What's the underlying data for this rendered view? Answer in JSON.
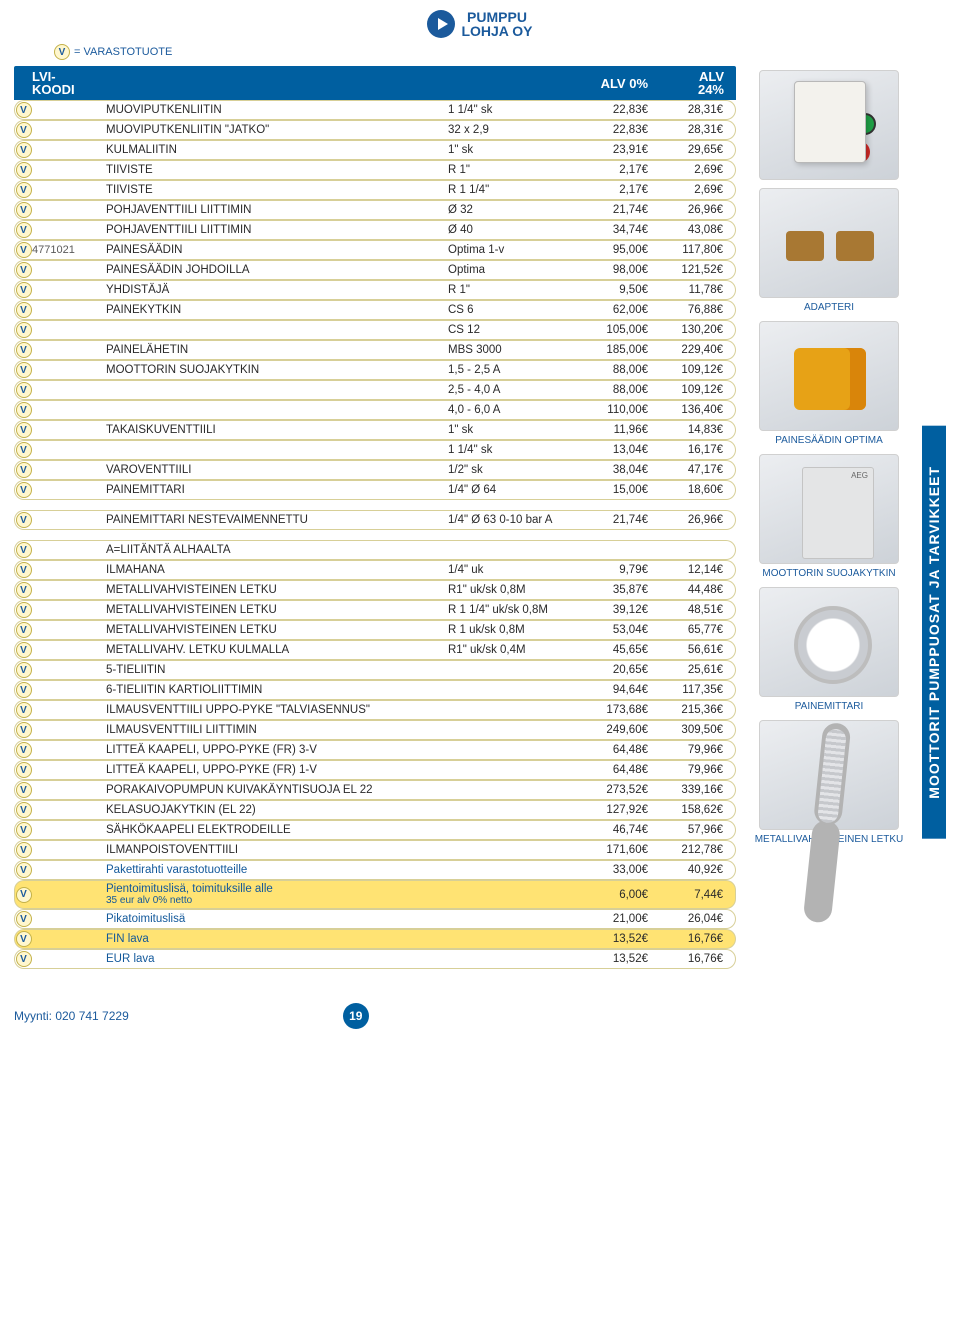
{
  "logo": {
    "line1": "PUMPPU",
    "line2": "LOHJA OY"
  },
  "legend": "= VARASTOTUOTE",
  "header": {
    "lvi": "LVI-\nKOODI",
    "alv0": "ALV 0%",
    "alv24": "ALV\n24%"
  },
  "table1": [
    {
      "v": true,
      "code": "",
      "name": "MUOVIPUTKENLIITIN",
      "spec": "1 1/4\" sk",
      "p0": "22,83€",
      "p24": "28,31€"
    },
    {
      "v": true,
      "code": "",
      "name": "MUOVIPUTKENLIITIN \"JATKO\"",
      "spec": "32 x 2,9",
      "p0": "22,83€",
      "p24": "28,31€"
    },
    {
      "v": true,
      "code": "",
      "name": "KULMALIITIN",
      "spec": "1\" sk",
      "p0": "23,91€",
      "p24": "29,65€"
    },
    {
      "v": true,
      "code": "",
      "name": "TIIVISTE",
      "spec": "R 1\"",
      "p0": "2,17€",
      "p24": "2,69€"
    },
    {
      "v": true,
      "code": "",
      "name": "TIIVISTE",
      "spec": "R 1 1/4\"",
      "p0": "2,17€",
      "p24": "2,69€"
    },
    {
      "v": true,
      "code": "",
      "name": "POHJAVENTTIILI LIITTIMIN",
      "spec": "Ø 32",
      "p0": "21,74€",
      "p24": "26,96€"
    },
    {
      "v": true,
      "code": "",
      "name": "POHJAVENTTIILI LIITTIMIN",
      "spec": "Ø 40",
      "p0": "34,74€",
      "p24": "43,08€"
    },
    {
      "v": true,
      "code": "4771021",
      "name": "PAINESÄÄDIN",
      "spec": "Optima 1-v",
      "p0": "95,00€",
      "p24": "117,80€"
    },
    {
      "v": true,
      "code": "",
      "name": "PAINESÄÄDIN JOHDOILLA",
      "spec": "Optima",
      "p0": "98,00€",
      "p24": "121,52€"
    },
    {
      "v": true,
      "code": "",
      "name": "YHDISTÄJÄ",
      "spec": "R 1\"",
      "p0": "9,50€",
      "p24": "11,78€"
    },
    {
      "v": true,
      "code": "",
      "name": "PAINEKYTKIN",
      "spec": "CS 6",
      "p0": "62,00€",
      "p24": "76,88€"
    },
    {
      "v": true,
      "code": "",
      "name": "",
      "spec": "CS 12",
      "p0": "105,00€",
      "p24": "130,20€"
    },
    {
      "v": true,
      "code": "",
      "name": "PAINELÄHETIN",
      "spec": "MBS 3000",
      "p0": "185,00€",
      "p24": "229,40€"
    },
    {
      "v": true,
      "code": "",
      "name": "MOOTTORIN SUOJAKYTKIN",
      "spec": "1,5 - 2,5 A",
      "p0": "88,00€",
      "p24": "109,12€"
    },
    {
      "v": true,
      "code": "",
      "name": "",
      "spec": "2,5 - 4,0 A",
      "p0": "88,00€",
      "p24": "109,12€"
    },
    {
      "v": true,
      "code": "",
      "name": "",
      "spec": "4,0 - 6,0 A",
      "p0": "110,00€",
      "p24": "136,40€"
    },
    {
      "v": true,
      "code": "",
      "name": "TAKAISKUVENTTIILI",
      "spec": "1\" sk",
      "p0": "11,96€",
      "p24": "14,83€"
    },
    {
      "v": true,
      "code": "",
      "name": "",
      "spec": "1 1/4\" sk",
      "p0": "13,04€",
      "p24": "16,17€"
    },
    {
      "v": true,
      "code": "",
      "name": "VAROVENTTIILI",
      "spec": "1/2\" sk",
      "p0": "38,04€",
      "p24": "47,17€"
    },
    {
      "v": true,
      "code": "",
      "name": "PAINEMITTARI",
      "spec": "1/4\" Ø 64",
      "p0": "15,00€",
      "p24": "18,60€"
    }
  ],
  "table2": [
    {
      "v": true,
      "code": "",
      "name": "PAINEMITTARI NESTEVAIMENNETTU",
      "spec": "1/4\" Ø 63 0-10 bar   A",
      "p0": "21,74€",
      "p24": "26,96€"
    }
  ],
  "table3": [
    {
      "v": true,
      "code": "",
      "name": "A=LIITÄNTÄ ALHAALTA",
      "spec": "",
      "p0": "",
      "p24": ""
    },
    {
      "v": true,
      "code": "",
      "name": "ILMAHANA",
      "spec": "1/4\" uk",
      "p0": "9,79€",
      "p24": "12,14€"
    },
    {
      "v": true,
      "code": "",
      "name": "METALLIVAHVISTEINEN LETKU",
      "spec": "R1\" uk/sk 0,8M",
      "p0": "35,87€",
      "p24": "44,48€"
    },
    {
      "v": true,
      "code": "",
      "name": "METALLIVAHVISTEINEN LETKU",
      "spec": "R 1 1/4\" uk/sk 0,8M",
      "p0": "39,12€",
      "p24": "48,51€"
    },
    {
      "v": true,
      "code": "",
      "name": "METALLIVAHVISTEINEN LETKU",
      "spec": "R 1 uk/sk 0,8M",
      "p0": "53,04€",
      "p24": "65,77€"
    },
    {
      "v": true,
      "code": "",
      "name": "METALLIVAHV. LETKU KULMALLA",
      "spec": "R1\" uk/sk 0,4M",
      "p0": "45,65€",
      "p24": "56,61€"
    },
    {
      "v": true,
      "code": "",
      "name": "5-TIELIITIN",
      "spec": "",
      "p0": "20,65€",
      "p24": "25,61€"
    },
    {
      "v": true,
      "code": "",
      "name": "6-TIELIITIN KARTIOLIITTIMIN",
      "spec": "",
      "p0": "94,64€",
      "p24": "117,35€"
    },
    {
      "v": true,
      "code": "",
      "name": "ILMAUSVENTTIILI UPPO-PYKE \"TALVIASENNUS\"",
      "spec": "",
      "p0": "173,68€",
      "p24": "215,36€"
    },
    {
      "v": true,
      "code": "",
      "name": "ILMAUSVENTTIILI LIITTIMIN",
      "spec": "",
      "p0": "249,60€",
      "p24": "309,50€"
    },
    {
      "v": true,
      "code": "",
      "name": "LITTEÄ KAAPELI, UPPO-PYKE (FR) 3-V",
      "spec": "",
      "p0": "64,48€",
      "p24": "79,96€"
    },
    {
      "v": true,
      "code": "",
      "name": "LITTEÄ KAAPELI, UPPO-PYKE (FR) 1-V",
      "spec": "",
      "p0": "64,48€",
      "p24": "79,96€"
    },
    {
      "v": true,
      "code": "",
      "name": "PORAKAIVOPUMPUN KUIVAKÄYNTISUOJA EL 22",
      "spec": "",
      "p0": "273,52€",
      "p24": "339,16€"
    },
    {
      "v": true,
      "code": "",
      "name": "KELASUOJAKYTKIN (EL 22)",
      "spec": "",
      "p0": "127,92€",
      "p24": "158,62€"
    },
    {
      "v": true,
      "code": "",
      "name": "SÄHKÖKAAPELI ELEKTRODEILLE",
      "spec": "",
      "p0": "46,74€",
      "p24": "57,96€"
    },
    {
      "v": true,
      "code": "",
      "name": "ILMANPOISTOVENTTIILI",
      "spec": "",
      "p0": "171,60€",
      "p24": "212,78€"
    },
    {
      "v": true,
      "hl": true,
      "code": "",
      "name": "Pakettirahti varastotuotteille",
      "spec": "",
      "p0": "33,00€",
      "p24": "40,92€"
    },
    {
      "v": true,
      "hl": true,
      "code": "",
      "name": "Pientoimituslisä, toimituksille alle",
      "sub": "35 eur alv 0% netto",
      "spec": "",
      "p0": "6,00€",
      "p24": "7,44€"
    },
    {
      "v": true,
      "hl": true,
      "code": "",
      "name": "Pikatoimituslisä",
      "spec": "",
      "p0": "21,00€",
      "p24": "26,04€"
    },
    {
      "v": true,
      "hl": true,
      "code": "",
      "name": "FIN lava",
      "spec": "",
      "p0": "13,52€",
      "p24": "16,76€"
    },
    {
      "v": true,
      "hl": true,
      "code": "",
      "name": "EUR lava",
      "spec": "",
      "p0": "13,52€",
      "p24": "16,76€"
    }
  ],
  "sideImages": [
    {
      "ph": "ph-control-box",
      "label": ""
    },
    {
      "ph": "ph-brass",
      "label": "ADAPTERI"
    },
    {
      "ph": "ph-yellowbox",
      "label": "PAINESÄÄDIN OPTIMA"
    },
    {
      "ph": "ph-greybox",
      "label": "MOOTTORIN SUOJAKYTKIN"
    },
    {
      "ph": "ph-gauge",
      "label": "PAINEMITTARI"
    },
    {
      "ph": "ph-hose",
      "label": "METALLIVAHVISTEINEN LETKU"
    }
  ],
  "sideFlag": "MOOTTORIT PUMPPUOSAT JA TARVIKKEET",
  "footer": {
    "phone": "Myynti: 020 741 7229",
    "page": "19"
  }
}
